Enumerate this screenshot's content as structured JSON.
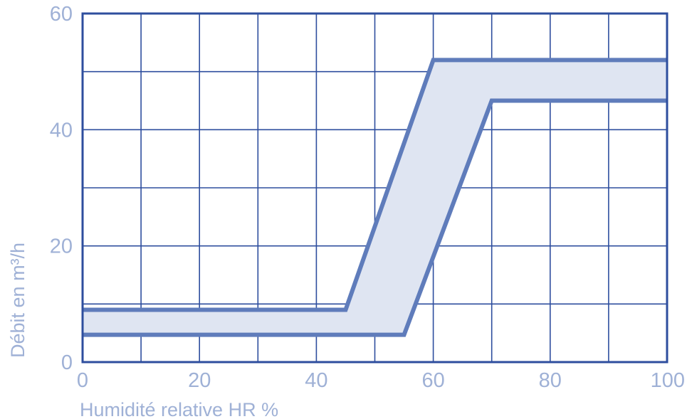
{
  "chart_data": {
    "type": "area",
    "title": "",
    "xlabel": "Humidité relative HR %",
    "ylabel": "Débit en m³/h",
    "xlim": [
      0,
      100
    ],
    "ylim": [
      0,
      60
    ],
    "x_ticks": [
      0,
      20,
      40,
      60,
      80,
      100
    ],
    "y_ticks": [
      0,
      20,
      40,
      60
    ],
    "x_tick_labels": [
      "0",
      "20",
      "40",
      "60",
      "80",
      "100"
    ],
    "y_tick_labels": [
      "0",
      "20",
      "40",
      "60"
    ],
    "grid": true,
    "grid_step_x": 10,
    "grid_step_y": 10,
    "legend": "none",
    "series": [
      {
        "x": [
          0,
          45,
          60,
          100
        ],
        "values": [
          9,
          9,
          52,
          52
        ]
      },
      {
        "x": [
          0,
          55,
          70,
          100
        ],
        "values": [
          4.7,
          4.7,
          45,
          45
        ]
      }
    ],
    "band_fill": "#dfe5f2",
    "line_color": "#5f7cbb",
    "frame_color": "#2e4e9e",
    "grid_color": "#2e4e9e",
    "label_color": "#9fb1d6"
  }
}
